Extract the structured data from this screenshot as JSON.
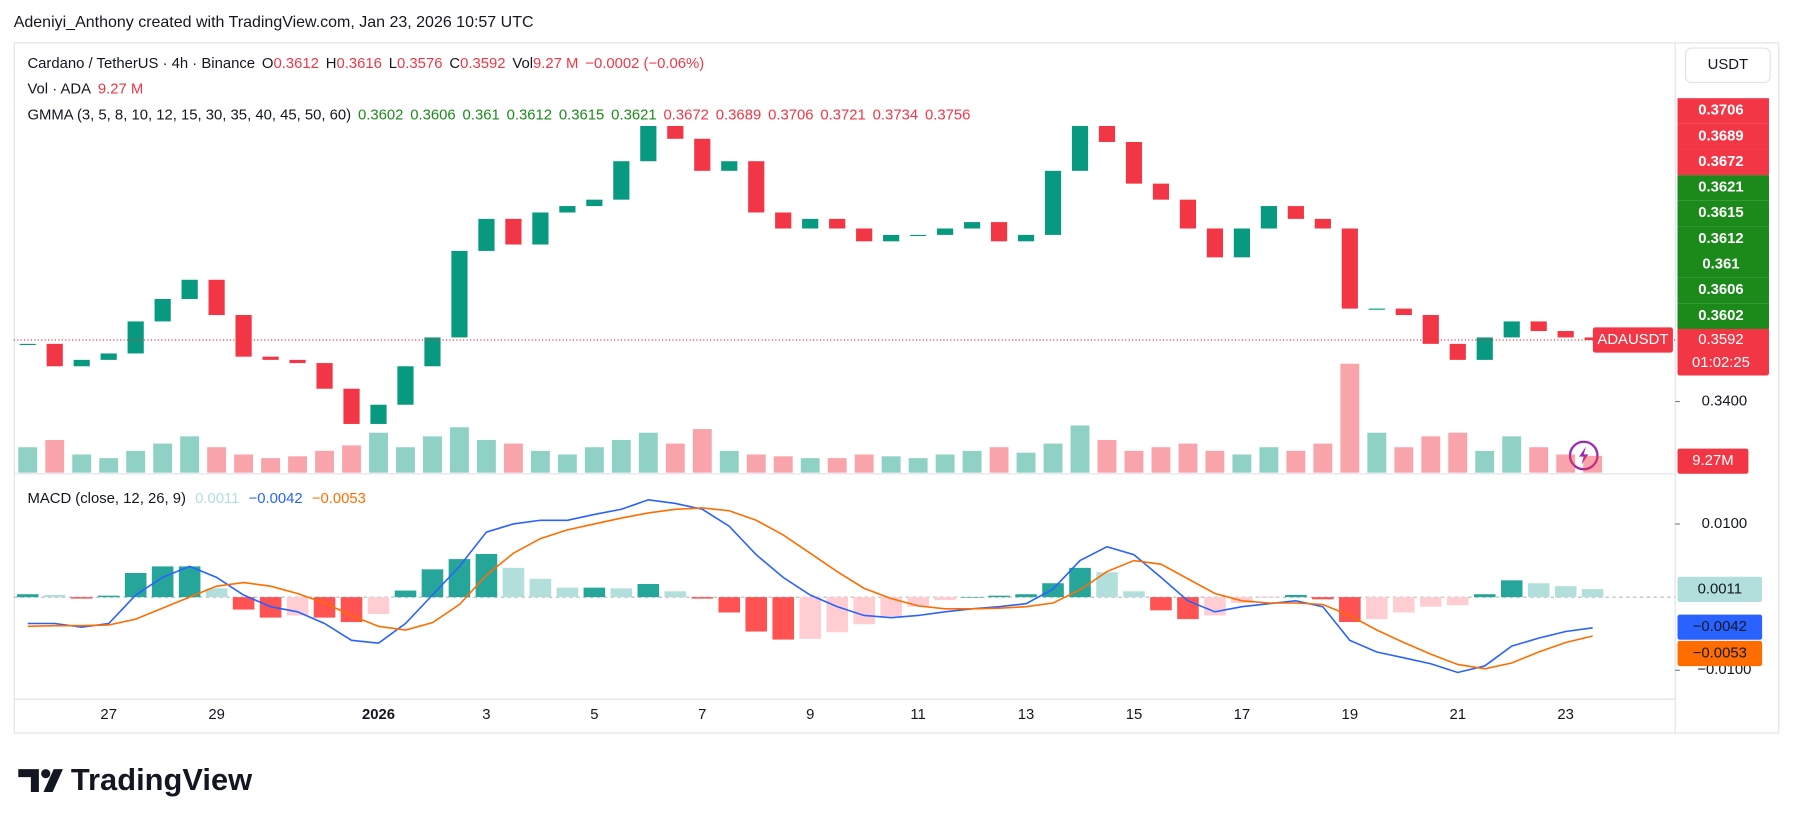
{
  "header": {
    "credit": "Adeniyi_Anthony created with TradingView.com, Jan 23, 2026 10:57 UTC",
    "currency_button": "USDT",
    "brand": "TradingView"
  },
  "chart_data": {
    "type": "candlestick",
    "symbol_line": "Cardano / TetherUS · 4h · Binance",
    "ohlc_legend": [
      {
        "label": "O",
        "value": 0.3612
      },
      {
        "label": "H",
        "value": 0.3616
      },
      {
        "label": "L",
        "value": 0.3576
      },
      {
        "label": "C",
        "value": 0.3592
      }
    ],
    "vol_legend": {
      "label": "Vol",
      "value_label": "9.27 M"
    },
    "change": "−0.0002 (−0.06%)",
    "symbol_tag": "ADAUSDT",
    "countdown": "01:02:25",
    "x": [
      -1.5,
      -1,
      -0.5,
      0,
      0.5,
      1,
      1.5,
      2,
      2.5,
      3,
      3.5,
      4,
      4.5,
      5,
      5.5,
      6,
      6.5,
      7,
      7.5,
      8,
      8.5,
      9,
      9.5,
      10,
      10.5,
      11,
      11.5,
      12,
      12.5,
      13,
      13.5,
      14,
      14.5,
      15,
      15.5,
      16,
      16.5,
      17,
      17.5,
      18,
      18.5,
      19,
      19.5,
      20,
      20.5,
      21,
      21.5,
      22,
      22.5,
      23,
      23.5,
      24,
      24.5,
      25,
      25.5,
      26,
      26.5,
      27,
      27.5
    ],
    "xlim": [
      -1.76,
      29.03
    ],
    "xticks": [
      {
        "value": 0,
        "label": "27"
      },
      {
        "value": 2,
        "label": "29"
      },
      {
        "value": 5,
        "label": "2026"
      },
      {
        "value": 7,
        "label": "3"
      },
      {
        "value": 9,
        "label": "5"
      },
      {
        "value": 11,
        "label": "7"
      },
      {
        "value": 13,
        "label": "9"
      },
      {
        "value": 15,
        "label": "11"
      },
      {
        "value": 17,
        "label": "13"
      },
      {
        "value": 19,
        "label": "15"
      },
      {
        "value": 21,
        "label": "17"
      },
      {
        "value": 23,
        "label": "19"
      },
      {
        "value": 25,
        "label": "21"
      },
      {
        "value": 27,
        "label": "23"
      }
    ],
    "close": [
      0.358,
      0.351,
      0.353,
      0.355,
      0.365,
      0.372,
      0.378,
      0.367,
      0.354,
      0.353,
      0.352,
      0.344,
      0.333,
      0.339,
      0.351,
      0.36,
      0.387,
      0.397,
      0.389,
      0.399,
      0.401,
      0.403,
      0.415,
      0.426,
      0.422,
      0.412,
      0.415,
      0.399,
      0.394,
      0.397,
      0.394,
      0.39,
      0.392,
      0.392,
      0.394,
      0.396,
      0.39,
      0.392,
      0.412,
      0.426,
      0.421,
      0.408,
      0.403,
      0.394,
      0.385,
      0.394,
      0.401,
      0.397,
      0.394,
      0.369,
      0.369,
      0.367,
      0.358,
      0.353,
      0.36,
      0.365,
      0.362,
      0.36,
      0.3592
    ],
    "up_color": "#089981",
    "down_color": "#f23645",
    "ylim": [
      0.3178,
      0.4521
    ],
    "yticks": [
      {
        "value": 0.34,
        "label": "0.3400"
      }
    ],
    "volume": {
      "name": "Vol · ADA",
      "value_label": "9.27M",
      "legend_label": "9.27 M",
      "values": [
        14,
        18,
        10,
        8,
        12,
        16,
        20,
        14,
        10,
        8,
        9,
        12,
        15,
        22,
        14,
        20,
        25,
        18,
        16,
        12,
        10,
        14,
        18,
        22,
        16,
        24,
        12,
        10,
        9,
        8,
        8,
        10,
        9,
        8,
        10,
        12,
        14,
        11,
        16,
        26,
        18,
        12,
        14,
        16,
        12,
        10,
        14,
        12,
        16,
        60,
        22,
        14,
        20,
        22,
        12,
        20,
        14,
        10,
        9.27
      ],
      "ylim": [
        0,
        237
      ]
    },
    "gmma": {
      "title": "GMMA (3, 5, 8, 10, 12, 15, 30, 35, 40, 45, 50, 60)",
      "values": [
        0.3602,
        0.3606,
        0.361,
        0.3612,
        0.3615,
        0.3621,
        0.3672,
        0.3689,
        0.3706,
        0.3721,
        0.3734,
        0.3756
      ],
      "colors": [
        "#1b8a1b",
        "#1b8a1b",
        "#1b8a1b",
        "#1b8a1b",
        "#1b8a1b",
        "#1b8a1b",
        "#f23645",
        "#f23645",
        "#f23645",
        "#f23645",
        "#f23645",
        "#f23645"
      ]
    },
    "macd": {
      "title": "MACD (close, 12, 26, 9)",
      "ylim": [
        -0.0138,
        0.0167
      ],
      "yticks": [
        {
          "value": 0.01,
          "label": "0.0100"
        },
        {
          "value": -0.01,
          "label": "−0.0100"
        }
      ],
      "histogram": {
        "color": "#26a69a",
        "values": [
          0.0004,
          0.0003,
          -0.0002,
          0.0002,
          0.0033,
          0.0042,
          0.0042,
          0.0012,
          -0.0017,
          -0.0028,
          -0.0025,
          -0.0028,
          -0.0034,
          -0.0023,
          0.0009,
          0.0038,
          0.0052,
          0.0059,
          0.004,
          0.0025,
          0.0013,
          0.0013,
          0.0012,
          0.0018,
          0.0008,
          -0.0002,
          -0.0021,
          -0.0047,
          -0.0058,
          -0.0057,
          -0.0048,
          -0.0037,
          -0.0026,
          -0.0013,
          -0.0004,
          0,
          0.0002,
          0.0004,
          0.0019,
          0.004,
          0.0034,
          0.0008,
          -0.0018,
          -0.003,
          -0.0025,
          -0.0008,
          -0.0001,
          0.0003,
          -0.0003,
          -0.0034,
          -0.003,
          -0.0021,
          -0.0013,
          -0.0011,
          0.0004,
          0.0023,
          0.0019,
          0.0015,
          0.0011
        ],
        "value_label": "0.0011"
      },
      "macd_line": {
        "color": "#2962ff",
        "values": [
          -0.0036,
          -0.0036,
          -0.0041,
          -0.0036,
          0.0003,
          0.0027,
          0.0042,
          0.0027,
          0.0003,
          -0.0013,
          -0.002,
          -0.0036,
          -0.0059,
          -0.0063,
          -0.0036,
          0.0003,
          0.0042,
          0.0089,
          0.01,
          0.0105,
          0.0105,
          0.0113,
          0.012,
          0.0133,
          0.0128,
          0.012,
          0.0097,
          0.0058,
          0.0027,
          0.0003,
          -0.0013,
          -0.0025,
          -0.0028,
          -0.0025,
          -0.002,
          -0.0016,
          -0.0013,
          -0.0009,
          0.0011,
          0.005,
          0.0069,
          0.0058,
          0.0027,
          -0.0005,
          -0.002,
          -0.0013,
          -0.0009,
          -0.0005,
          -0.0013,
          -0.0059,
          -0.0075,
          -0.0083,
          -0.0091,
          -0.0103,
          -0.0094,
          -0.0067,
          -0.0056,
          -0.0047,
          -0.0042
        ],
        "value_label": "−0.0042"
      },
      "signal_line": {
        "color": "#ff6d00",
        "values": [
          -0.004,
          -0.0039,
          -0.0039,
          -0.0038,
          -0.003,
          -0.0015,
          0,
          0.0015,
          0.002,
          0.0015,
          0.0005,
          -0.0008,
          -0.0025,
          -0.004,
          -0.0045,
          -0.0035,
          -0.001,
          0.003,
          0.006,
          0.008,
          0.0092,
          0.01,
          0.0108,
          0.0115,
          0.012,
          0.0122,
          0.0118,
          0.0105,
          0.0085,
          0.006,
          0.0035,
          0.0012,
          -0.0002,
          -0.0012,
          -0.0016,
          -0.0016,
          -0.0015,
          -0.0013,
          -0.0008,
          0.001,
          0.0035,
          0.005,
          0.0045,
          0.0025,
          0.0005,
          -0.0005,
          -0.0008,
          -0.0008,
          -0.001,
          -0.0025,
          -0.0045,
          -0.0062,
          -0.0078,
          -0.0092,
          -0.0098,
          -0.009,
          -0.0075,
          -0.0062,
          -0.0053
        ],
        "value_label": "−0.0053"
      }
    }
  }
}
